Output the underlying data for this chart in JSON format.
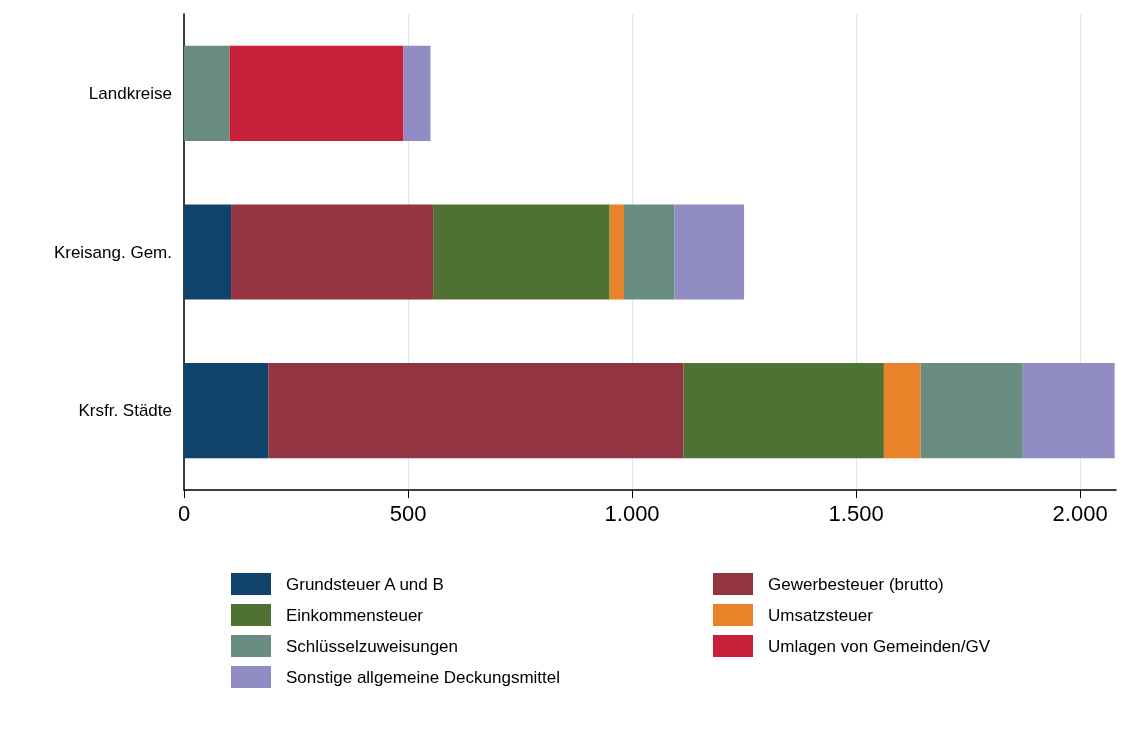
{
  "chart_data": {
    "type": "bar",
    "orientation": "horizontal",
    "stacked": true,
    "categories": [
      "Landkreise",
      "Kreisang. Gem.",
      "Krsfr. Städte"
    ],
    "series": [
      {
        "name": "Grundsteuer A und B",
        "color": "#10436b",
        "values": [
          0,
          105,
          188
        ]
      },
      {
        "name": "Gewerbesteuer (brutto)",
        "color": "#933540",
        "values": [
          0,
          451,
          927
        ]
      },
      {
        "name": "Einkommensteuer",
        "color": "#4f7233",
        "values": [
          0,
          394,
          447
        ]
      },
      {
        "name": "Umsatzsteuer",
        "color": "#e8832a",
        "values": [
          0,
          32,
          82
        ]
      },
      {
        "name": "Schlüsselzuweisungen",
        "color": "#6a8d82",
        "values": [
          102,
          113,
          228
        ]
      },
      {
        "name": "Umlagen von Gemeinden/GV",
        "color": "#c8203a",
        "values": [
          388,
          0,
          0
        ]
      },
      {
        "name": "Sonstige allgemeine Deckungsmittel",
        "color": "#918dc4",
        "values": [
          60,
          155,
          205
        ]
      }
    ],
    "xlim": [
      0,
      2080
    ],
    "xticks": [
      0,
      500,
      {
        "value": 1000,
        "label": "1.000"
      },
      {
        "value": 1500,
        "label": "1.500"
      },
      {
        "value": 2000,
        "label": "2.000"
      }
    ],
    "grid": "x",
    "legend": "bottom"
  }
}
